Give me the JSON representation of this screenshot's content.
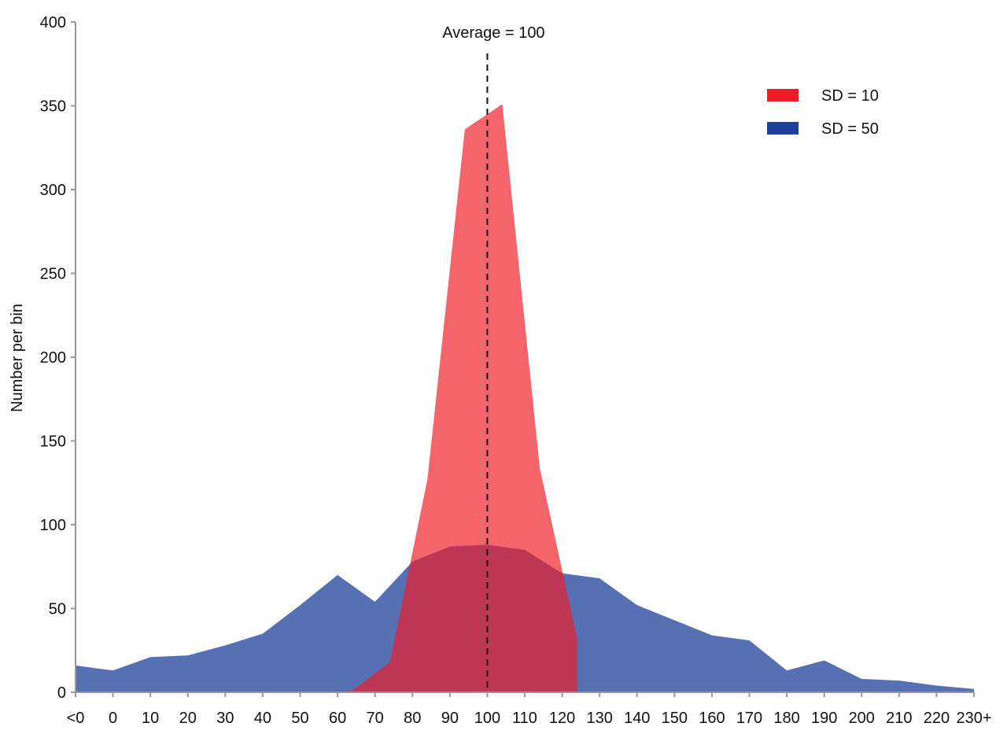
{
  "chart_data": {
    "type": "area",
    "ylabel": "Number per bin",
    "xlabel": "",
    "ylim": [
      0,
      400
    ],
    "yticks": [
      0,
      50,
      100,
      150,
      200,
      250,
      300,
      350,
      400
    ],
    "categories": [
      "<0",
      "0",
      "10",
      "20",
      "30",
      "40",
      "50",
      "60",
      "70",
      "80",
      "90",
      "100",
      "110",
      "120",
      "130",
      "140",
      "150",
      "160",
      "170",
      "180",
      "190",
      "200",
      "210",
      "220",
      "230+"
    ],
    "series": [
      {
        "name": "SD = 50",
        "color": "#1f3f99",
        "opacity": 0.75,
        "x": [
          -10,
          0,
          10,
          20,
          30,
          40,
          50,
          60,
          70,
          80,
          90,
          100,
          110,
          120,
          130,
          140,
          150,
          160,
          170,
          180,
          190,
          200,
          210,
          220,
          230
        ],
        "values": [
          16,
          13,
          21,
          22,
          28,
          35,
          52,
          70,
          54,
          78,
          87,
          88,
          85,
          71,
          68,
          52,
          43,
          34,
          31,
          13,
          19,
          8,
          7,
          4,
          2
        ]
      },
      {
        "name": "SD = 10",
        "color": "#ee1c25",
        "opacity": 0.68,
        "x": [
          60,
          64,
          74,
          84,
          94,
          104,
          114,
          124,
          124
        ],
        "values": [
          0,
          1,
          18,
          127,
          336,
          351,
          134,
          32,
          0
        ]
      }
    ],
    "annotation": {
      "text": "Average = 100",
      "x": 100,
      "style": "dashed-vertical-line"
    },
    "legend": {
      "position": "top-right",
      "items": [
        {
          "label": "SD = 10",
          "color": "#ee1c25"
        },
        {
          "label": "SD = 50",
          "color": "#1f3f99"
        }
      ]
    },
    "grid": false,
    "axis_color": "#999999"
  }
}
